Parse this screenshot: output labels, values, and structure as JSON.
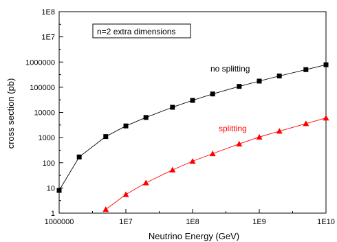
{
  "chart_data": {
    "type": "scatter",
    "xlabel": "Neutrino Energy (GeV)",
    "ylabel": "cross section (pb)",
    "x_scale": "log",
    "y_scale": "log",
    "xlim": [
      1000000,
      10000000000
    ],
    "ylim": [
      1,
      100000000
    ],
    "x_ticks": [
      {
        "value": 1000000,
        "label": "1000000"
      },
      {
        "value": 10000000,
        "label": "1E7"
      },
      {
        "value": 100000000,
        "label": "1E8"
      },
      {
        "value": 1000000000,
        "label": "1E9"
      },
      {
        "value": 10000000000,
        "label": "1E10"
      }
    ],
    "y_ticks": [
      {
        "value": 1,
        "label": "1"
      },
      {
        "value": 10,
        "label": "10"
      },
      {
        "value": 100,
        "label": "100"
      },
      {
        "value": 1000,
        "label": "1000"
      },
      {
        "value": 10000,
        "label": "10000"
      },
      {
        "value": 100000,
        "label": "100000"
      },
      {
        "value": 1000000,
        "label": "1000000"
      },
      {
        "value": 10000000,
        "label": "1E7"
      },
      {
        "value": 100000000,
        "label": "1E8"
      }
    ],
    "grid": false,
    "series": [
      {
        "name": "no splitting",
        "color": "#000000",
        "marker": "square",
        "x": [
          1000000,
          2000000,
          5000000,
          10000000,
          20000000,
          50000000,
          100000000,
          200000000,
          500000000,
          1000000000,
          2000000000,
          5000000000,
          10000000000
        ],
        "y": [
          8,
          170,
          1100,
          2900,
          6300,
          16000,
          30000,
          54000,
          108000,
          175000,
          280000,
          500000,
          780000
        ]
      },
      {
        "name": "splitting",
        "color": "#ff0000",
        "marker": "triangle",
        "x": [
          5000000,
          10000000,
          20000000,
          50000000,
          100000000,
          200000000,
          500000000,
          1000000000,
          2000000000,
          5000000000,
          10000000000
        ],
        "y": [
          1.4,
          5.5,
          16,
          52,
          115,
          230,
          560,
          1050,
          1800,
          3600,
          6000
        ]
      }
    ],
    "annotations": [
      {
        "id": "box",
        "text": "n=2  extra dimensions"
      }
    ]
  }
}
